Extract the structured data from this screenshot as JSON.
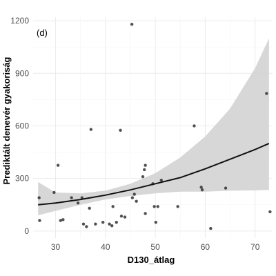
{
  "chart_data": {
    "type": "scatter",
    "panel_label": "(d)",
    "xlabel": "D130_átlag",
    "ylabel": "Prediktált denevér gyakoriság",
    "xlim": [
      25.5,
      73.5
    ],
    "ylim": [
      -40,
      1220
    ],
    "xticks": [
      30,
      40,
      50,
      60,
      70
    ],
    "yticks": [
      0,
      300,
      600,
      900,
      1200
    ],
    "grid": true,
    "points": [
      {
        "x": 26.7,
        "y": 190
      },
      {
        "x": 26.8,
        "y": 60
      },
      {
        "x": 29.7,
        "y": 220
      },
      {
        "x": 30.5,
        "y": 375
      },
      {
        "x": 31.0,
        "y": 60
      },
      {
        "x": 31.5,
        "y": 65
      },
      {
        "x": 33.2,
        "y": 190
      },
      {
        "x": 34.5,
        "y": 160
      },
      {
        "x": 35.3,
        "y": 190
      },
      {
        "x": 35.6,
        "y": 40
      },
      {
        "x": 36.2,
        "y": 25
      },
      {
        "x": 36.8,
        "y": 130
      },
      {
        "x": 37.1,
        "y": 580
      },
      {
        "x": 38.0,
        "y": 40
      },
      {
        "x": 39.5,
        "y": 50
      },
      {
        "x": 40.8,
        "y": 40
      },
      {
        "x": 41.3,
        "y": 30
      },
      {
        "x": 41.5,
        "y": 140
      },
      {
        "x": 42.2,
        "y": 50
      },
      {
        "x": 43.0,
        "y": 575
      },
      {
        "x": 43.2,
        "y": 85
      },
      {
        "x": 43.9,
        "y": 80
      },
      {
        "x": 45.3,
        "y": 1180
      },
      {
        "x": 45.4,
        "y": 190
      },
      {
        "x": 45.8,
        "y": 210
      },
      {
        "x": 46.2,
        "y": 170
      },
      {
        "x": 47.5,
        "y": 310
      },
      {
        "x": 47.8,
        "y": 350
      },
      {
        "x": 48.0,
        "y": 375
      },
      {
        "x": 48.0,
        "y": 100
      },
      {
        "x": 49.5,
        "y": 270
      },
      {
        "x": 49.8,
        "y": 140
      },
      {
        "x": 50.1,
        "y": 50
      },
      {
        "x": 50.5,
        "y": 140
      },
      {
        "x": 51.2,
        "y": 290
      },
      {
        "x": 54.5,
        "y": 140
      },
      {
        "x": 57.8,
        "y": 600
      },
      {
        "x": 59.2,
        "y": 250
      },
      {
        "x": 59.4,
        "y": 235
      },
      {
        "x": 61.1,
        "y": 15
      },
      {
        "x": 64.1,
        "y": 245
      },
      {
        "x": 72.3,
        "y": 785
      },
      {
        "x": 73.0,
        "y": 110
      }
    ],
    "fit": {
      "x": [
        26.5,
        30,
        35,
        40,
        45,
        50,
        55,
        60,
        65,
        70,
        72.8
      ],
      "y": [
        150,
        160,
        180,
        205,
        235,
        270,
        305,
        355,
        410,
        465,
        500
      ],
      "lower": [
        280,
        200,
        190,
        200,
        205,
        220,
        230,
        230,
        230,
        235,
        235
      ],
      "upper": [
        280,
        200,
        190,
        200,
        205,
        220,
        230,
        230,
        230,
        235,
        235
      ]
    },
    "fit_band": {
      "lower": [
        90,
        115,
        150,
        180,
        200,
        215,
        225,
        225,
        230,
        232,
        235
      ],
      "upper": [
        280,
        220,
        215,
        230,
        270,
        330,
        420,
        540,
        700,
        930,
        1100
      ]
    },
    "colors": {
      "points": "#333333",
      "line": "#111111",
      "band": "#d3d3d3",
      "grid": "#ebebeb"
    }
  }
}
